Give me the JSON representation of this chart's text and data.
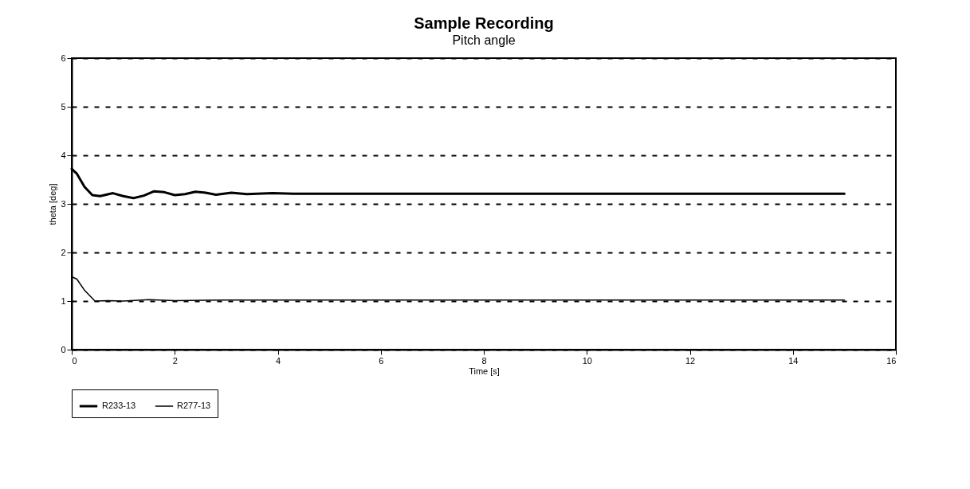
{
  "chart_data": {
    "type": "line",
    "title": "Sample Recording",
    "subtitle": "Pitch angle",
    "xlabel": "Time [s]",
    "ylabel": "theta [deg]",
    "xlim": [
      0,
      16
    ],
    "xticks": [
      0,
      2,
      4,
      6,
      8,
      10,
      12,
      14,
      16
    ],
    "ylim": [
      0,
      6
    ],
    "yticks": [
      0,
      1,
      2,
      3,
      4,
      5,
      6
    ],
    "grid": "y",
    "legend": "bottom",
    "line_style": "solid",
    "series": [
      {
        "name": "R233-13",
        "color": "#000000",
        "x": [
          0,
          0.1,
          0.25,
          0.4,
          0.55,
          0.8,
          1.0,
          1.2,
          1.4,
          1.6,
          1.8,
          2.0,
          2.2,
          2.4,
          2.6,
          2.8,
          3.1,
          3.4,
          3.6,
          3.9,
          4.3,
          5,
          6,
          8,
          10,
          12,
          15
        ],
        "values": [
          3.72,
          3.62,
          3.35,
          3.18,
          3.16,
          3.22,
          3.16,
          3.12,
          3.17,
          3.26,
          3.24,
          3.18,
          3.2,
          3.25,
          3.23,
          3.19,
          3.23,
          3.2,
          3.21,
          3.22,
          3.21,
          3.21,
          3.21,
          3.21,
          3.21,
          3.21,
          3.21
        ]
      },
      {
        "name": "R277-13",
        "color": "#000000",
        "x": [
          0,
          0.1,
          0.25,
          0.45,
          0.7,
          1.0,
          1.5,
          2,
          3,
          4,
          6,
          8,
          10,
          12,
          15
        ],
        "values": [
          1.5,
          1.45,
          1.22,
          1.0,
          1.01,
          1.0,
          1.03,
          1.01,
          1.02,
          1.02,
          1.02,
          1.02,
          1.02,
          1.02,
          1.02
        ]
      }
    ]
  }
}
